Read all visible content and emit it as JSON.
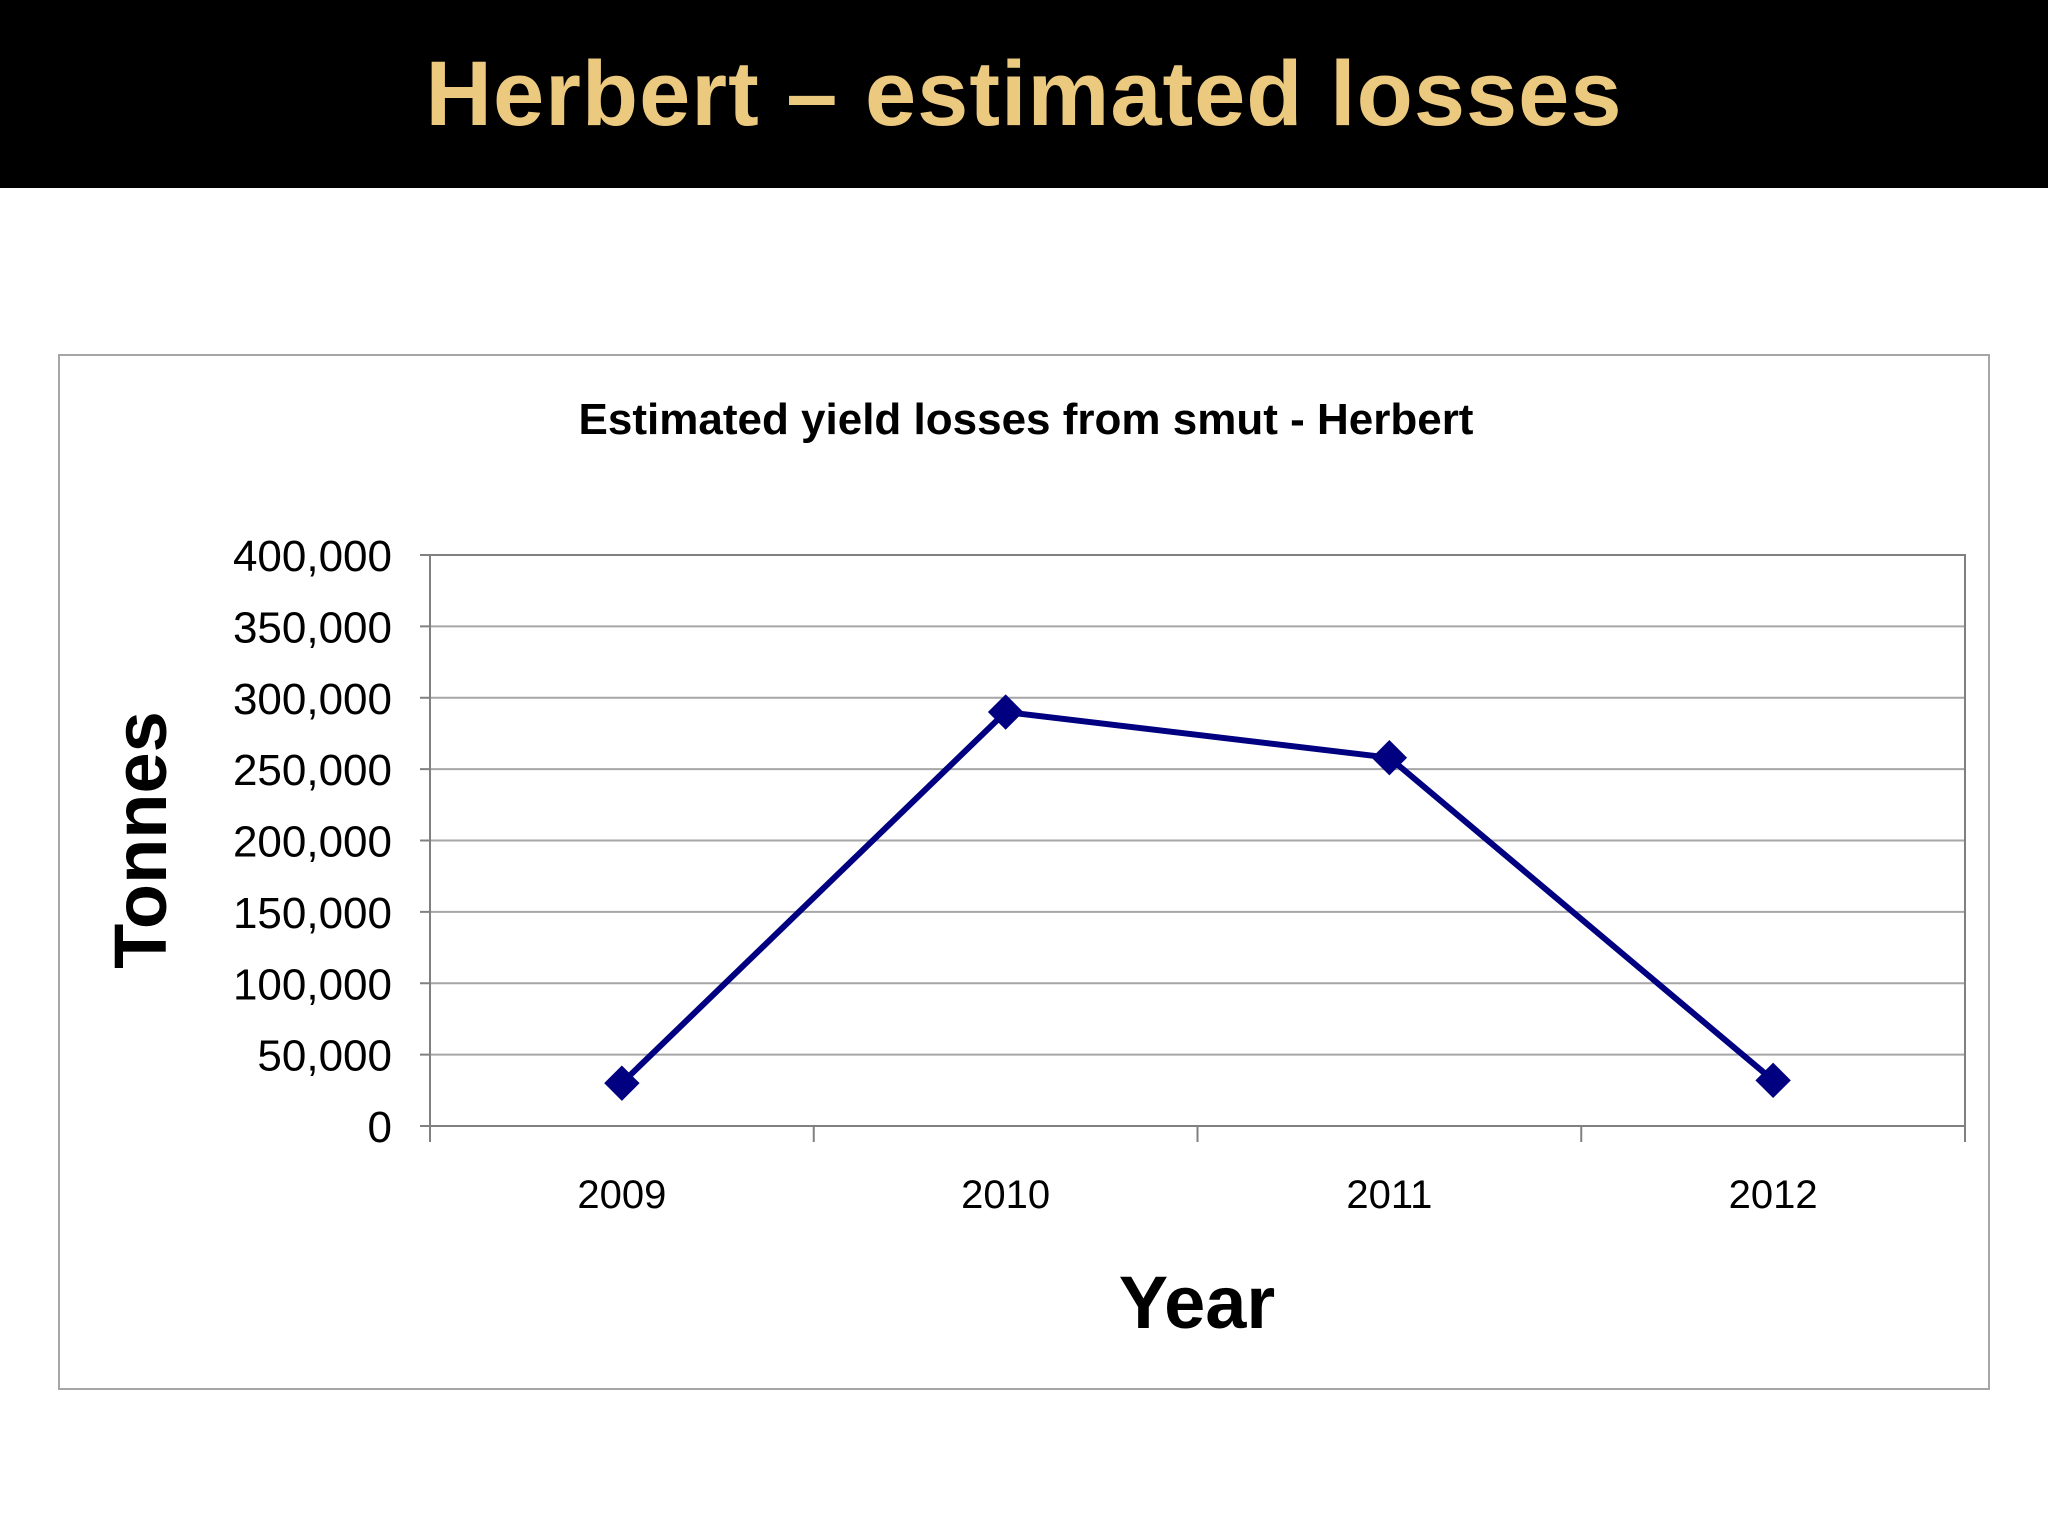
{
  "slide": {
    "title": "Herbert – estimated losses"
  },
  "colors": {
    "title_bar_bg": "#000000",
    "title_text": "#ebc97f",
    "series_line": "#000080",
    "grid": "#a6a6a6"
  },
  "chart_data": {
    "type": "line",
    "title": "Estimated yield losses from smut - Herbert",
    "xlabel": "Year",
    "ylabel": "Tonnes",
    "categories": [
      "2009",
      "2010",
      "2011",
      "2012"
    ],
    "series": [
      {
        "values": [
          30000,
          290000,
          258000,
          32000
        ],
        "marker": "diamond",
        "color": "#000080"
      }
    ],
    "ylim": [
      0,
      400000
    ],
    "yticks": [
      0,
      50000,
      100000,
      150000,
      200000,
      250000,
      300000,
      350000,
      400000
    ],
    "ytick_labels": [
      "0",
      "50,000",
      "100,000",
      "150,000",
      "200,000",
      "250,000",
      "300,000",
      "350,000",
      "400,000"
    ],
    "grid": true,
    "legend": "none"
  }
}
